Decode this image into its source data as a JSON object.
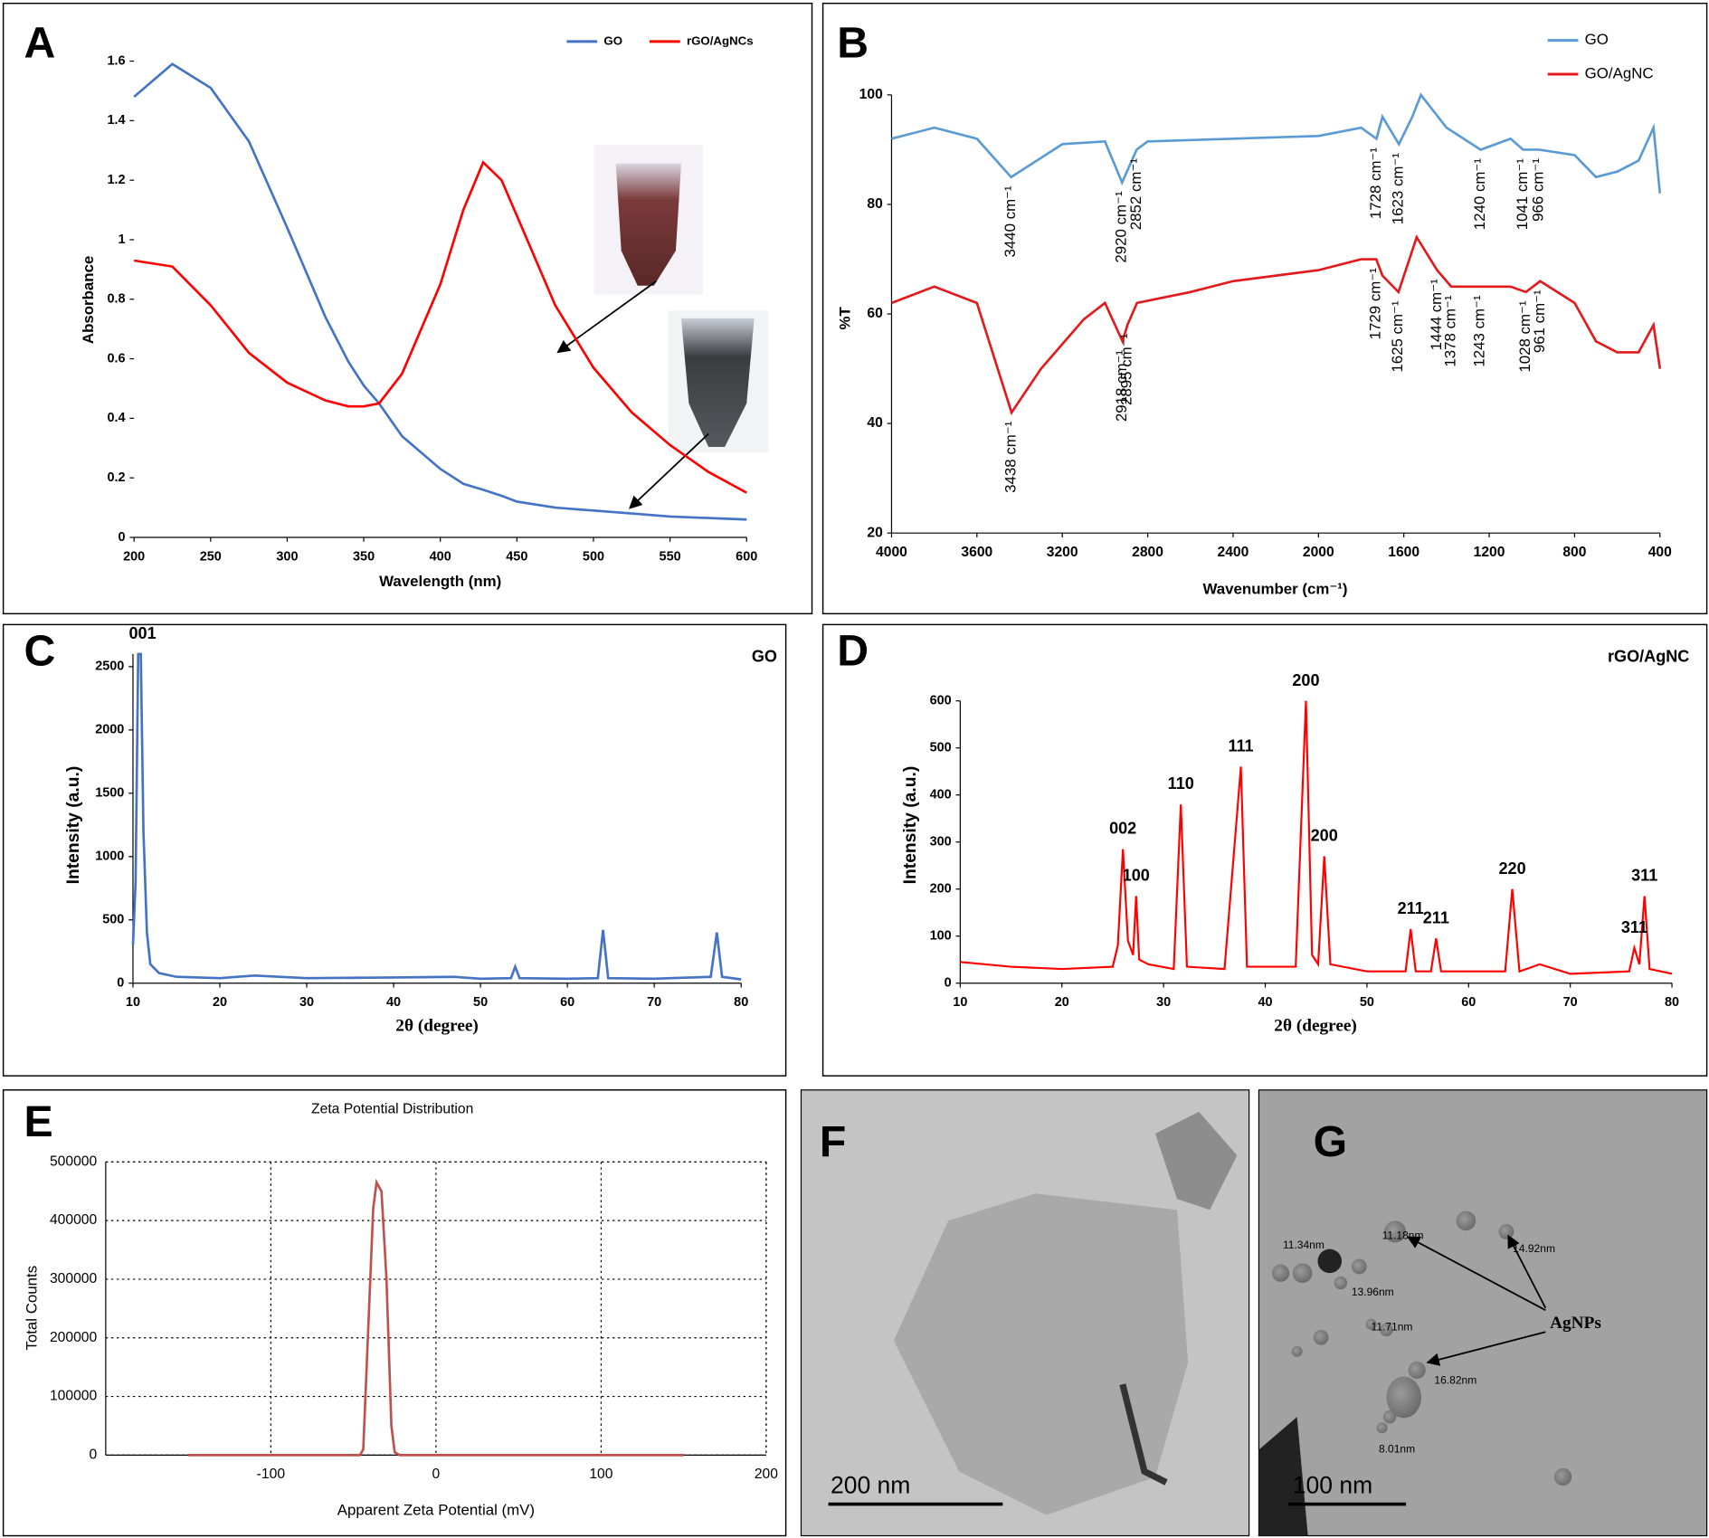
{
  "chart_data": [
    {
      "panel": "A",
      "type": "line",
      "xlabel": "Wavelength (nm)",
      "ylabel": "Absorbance",
      "legend": "top",
      "x": [
        200,
        225,
        250,
        275,
        300,
        325,
        340,
        350,
        360,
        375,
        400,
        415,
        428,
        440,
        450,
        475,
        500,
        525,
        550,
        575,
        600
      ],
      "series": [
        {
          "name": "GO",
          "color": "#4472c4",
          "values": [
            1.48,
            1.59,
            1.51,
            1.33,
            1.04,
            0.74,
            0.59,
            0.51,
            0.45,
            0.34,
            0.23,
            0.18,
            0.16,
            0.14,
            0.12,
            0.1,
            0.09,
            0.08,
            0.07,
            0.065,
            0.06
          ]
        },
        {
          "name": "rGO/AgNCs",
          "color": "#ff0000",
          "values": [
            0.93,
            0.91,
            0.78,
            0.62,
            0.52,
            0.46,
            0.44,
            0.44,
            0.45,
            0.55,
            0.85,
            1.1,
            1.26,
            1.2,
            1.08,
            0.78,
            0.57,
            0.42,
            0.31,
            0.22,
            0.15
          ]
        }
      ],
      "xlim": [
        200,
        600
      ],
      "xticks": [
        200,
        250,
        300,
        350,
        400,
        450,
        500,
        550,
        600
      ],
      "ylim": [
        0,
        1.6
      ],
      "yticks": [
        0,
        0.2,
        0.4,
        0.6,
        0.8,
        1,
        1.2,
        1.4,
        1.6
      ]
    },
    {
      "panel": "B",
      "type": "line",
      "xlabel": "Wavenumber (cm⁻¹)",
      "ylabel": "%T",
      "legend": "top-right",
      "series": [
        {
          "name": "GO",
          "color": "#5b9bd5",
          "x": [
            4000,
            3800,
            3600,
            3440,
            3200,
            3000,
            2920,
            2852,
            2800,
            2400,
            2000,
            1800,
            1728,
            1700,
            1623,
            1560,
            1520,
            1400,
            1240,
            1100,
            1041,
            966,
            800,
            700,
            600,
            500,
            430,
            400
          ],
          "values": [
            92,
            94,
            92,
            85,
            91,
            91.5,
            84,
            90,
            91.5,
            92,
            92.5,
            94,
            92,
            96,
            91,
            96,
            100,
            94,
            90,
            92,
            90,
            90,
            89,
            85,
            86,
            88,
            94,
            82
          ],
          "annotations": [
            {
              "x": 3440,
              "label": "3440 cm⁻¹"
            },
            {
              "x": 2920,
              "label": "2920 cm⁻¹"
            },
            {
              "x": 2852,
              "label": "2852 cm⁻¹"
            },
            {
              "x": 1728,
              "label": "1728 cm⁻¹"
            },
            {
              "x": 1623,
              "label": "1623 cm⁻¹"
            },
            {
              "x": 1240,
              "label": "1240 cm⁻¹"
            },
            {
              "x": 1041,
              "label": "1041 cm⁻¹"
            },
            {
              "x": 966,
              "label": "966 cm⁻¹"
            }
          ]
        },
        {
          "name": "GO/AgNC",
          "color": "#e31a1c",
          "x": [
            4000,
            3800,
            3600,
            3438,
            3300,
            3100,
            3000,
            2918,
            2895,
            2850,
            2600,
            2400,
            2000,
            1800,
            1729,
            1700,
            1625,
            1540,
            1444,
            1378,
            1243,
            1100,
            1028,
            961,
            800,
            700,
            600,
            500,
            430,
            400
          ],
          "values": [
            62,
            65,
            62,
            42,
            50,
            59,
            62,
            55,
            58,
            62,
            64,
            66,
            68,
            70,
            70,
            67,
            64,
            74,
            68,
            65,
            65,
            65,
            64,
            66,
            62,
            55,
            53,
            53,
            58,
            50
          ],
          "annotations": [
            {
              "x": 3438,
              "label": "3438 cm⁻¹"
            },
            {
              "x": 2918,
              "label": "2918 cm⁻¹"
            },
            {
              "x": 2895,
              "label": "2895 cm⁻¹"
            },
            {
              "x": 1729,
              "label": "1729 cm⁻¹"
            },
            {
              "x": 1625,
              "label": "1625 cm⁻¹"
            },
            {
              "x": 1444,
              "label": "1444 cm⁻¹"
            },
            {
              "x": 1378,
              "label": "1378 cm⁻¹"
            },
            {
              "x": 1243,
              "label": "1243 cm⁻¹"
            },
            {
              "x": 1028,
              "label": "1028 cm⁻¹"
            },
            {
              "x": 961,
              "label": "961 cm⁻¹"
            }
          ]
        }
      ],
      "xlim": [
        4000,
        400
      ],
      "xticks": [
        4000,
        3600,
        3200,
        2800,
        2400,
        2000,
        1600,
        1200,
        800,
        400
      ],
      "ylim": [
        20,
        100
      ],
      "yticks": [
        20,
        40,
        60,
        80,
        100
      ]
    },
    {
      "panel": "C",
      "type": "line",
      "title": "GO",
      "xlabel": "2θ (degree)",
      "ylabel": "Intensity (a.u.)",
      "x": [
        10,
        10.3,
        10.6,
        10.9,
        11.2,
        11.6,
        12,
        13,
        15,
        20,
        24,
        30,
        40,
        47,
        50,
        53.5,
        54,
        54.5,
        60,
        63.5,
        64.1,
        64.7,
        70,
        76.5,
        77.2,
        77.8,
        80
      ],
      "series": [
        {
          "color": "#4472c4",
          "values": [
            300,
            800,
            2600,
            2600,
            1200,
            400,
            150,
            80,
            50,
            40,
            60,
            40,
            45,
            50,
            35,
            40,
            130,
            40,
            35,
            40,
            420,
            40,
            35,
            50,
            400,
            50,
            30
          ]
        }
      ],
      "annotations": [
        {
          "x": 10.6,
          "y": 2600,
          "label": "001"
        }
      ],
      "xlim": [
        10,
        80
      ],
      "xticks": [
        10,
        20,
        30,
        40,
        50,
        60,
        70,
        80
      ],
      "ylim": [
        0,
        2600
      ],
      "yticks": [
        0,
        500,
        1000,
        1500,
        2000,
        2500
      ]
    },
    {
      "panel": "D",
      "type": "line",
      "title": "rGO/AgNC",
      "xlabel": "2θ (degree)",
      "ylabel": "Intensity (a.u.)",
      "x": [
        10,
        15,
        20,
        25,
        25.5,
        26,
        26.5,
        27,
        27.3,
        27.6,
        28.5,
        31,
        31.7,
        32.3,
        36,
        37.6,
        38.2,
        43,
        44,
        44.6,
        45.2,
        45.8,
        46.4,
        50,
        53.8,
        54.3,
        54.8,
        56.3,
        56.8,
        57.3,
        63.6,
        64.3,
        65,
        67,
        70,
        75.8,
        76.3,
        76.8,
        77.3,
        77.8,
        80
      ],
      "series": [
        {
          "color": "#ff0000",
          "values": [
            45,
            35,
            30,
            35,
            80,
            285,
            90,
            60,
            185,
            50,
            40,
            30,
            380,
            35,
            30,
            460,
            35,
            35,
            600,
            60,
            40,
            270,
            40,
            25,
            25,
            115,
            25,
            25,
            95,
            25,
            25,
            200,
            25,
            40,
            20,
            25,
            75,
            40,
            185,
            30,
            20
          ]
        }
      ],
      "annotations": [
        {
          "x": 26,
          "y": 285,
          "label": "002"
        },
        {
          "x": 27.3,
          "y": 185,
          "label": "100"
        },
        {
          "x": 31.7,
          "y": 380,
          "label": "110"
        },
        {
          "x": 37.6,
          "y": 460,
          "label": "111"
        },
        {
          "x": 44,
          "y": 600,
          "label": "200"
        },
        {
          "x": 45.8,
          "y": 270,
          "label": "200"
        },
        {
          "x": 54.3,
          "y": 115,
          "label": "211"
        },
        {
          "x": 56.8,
          "y": 95,
          "label": "211"
        },
        {
          "x": 64.3,
          "y": 200,
          "label": "220"
        },
        {
          "x": 76.3,
          "y": 75,
          "label": "311"
        },
        {
          "x": 77.3,
          "y": 185,
          "label": "311"
        }
      ],
      "xlim": [
        10,
        80
      ],
      "xticks": [
        10,
        20,
        30,
        40,
        50,
        60,
        70,
        80
      ],
      "ylim": [
        0,
        600
      ],
      "yticks": [
        0,
        100,
        200,
        300,
        400,
        500,
        600
      ]
    },
    {
      "panel": "E",
      "type": "line",
      "title": "Zeta Potential Distribution",
      "xlabel": "Apparent Zeta Potential (mV)",
      "ylabel": "Total Counts",
      "grid": true,
      "x": [
        -150,
        -46,
        -44,
        -42,
        -38,
        -36,
        -33,
        -30,
        -27,
        -25,
        -22,
        150
      ],
      "series": [
        {
          "color": "#c0504d",
          "values": [
            0,
            0,
            10000,
            150000,
            420000,
            465000,
            450000,
            300000,
            50000,
            5000,
            0,
            0
          ]
        }
      ],
      "xlim": [
        -200,
        200
      ],
      "xticks": [
        -100,
        0,
        100,
        200
      ],
      "ylim": [
        0,
        500000
      ],
      "yticks": [
        0,
        100000,
        200000,
        300000,
        400000,
        500000
      ]
    }
  ],
  "images": [
    {
      "panel": "F",
      "scale_bar": "200 nm"
    },
    {
      "panel": "G",
      "scale_bar": "100 nm",
      "labels": [
        "11.18nm",
        "11.34nm",
        "13.96nm",
        "11.71nm",
        "14.92nm",
        "16.82nm",
        "8.01nm"
      ],
      "annotation": "AgNPs"
    }
  ]
}
